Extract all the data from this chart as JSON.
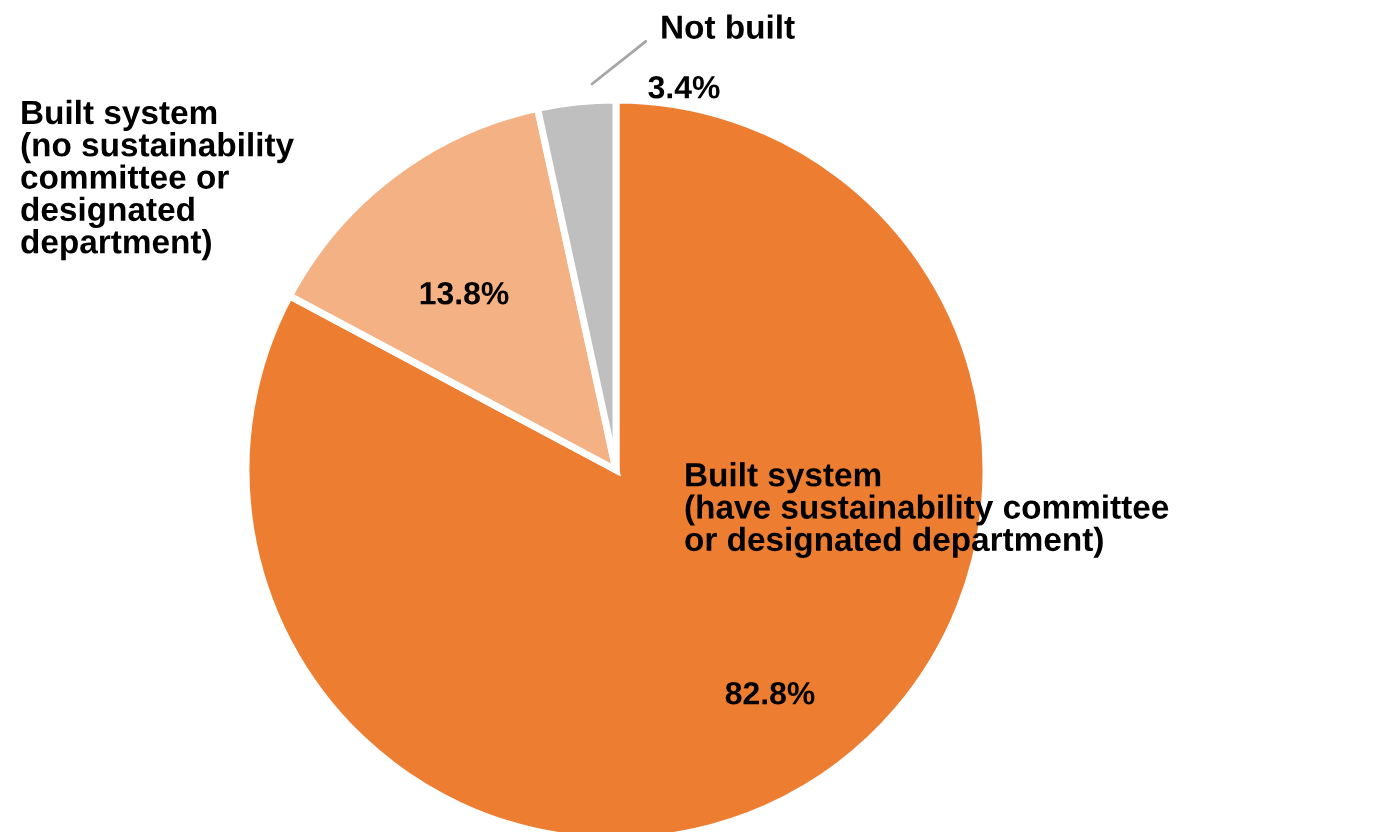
{
  "chart_data": {
    "type": "pie",
    "categories": [
      "Built system\n(have sustainability committee\nor designated department)",
      "Built system\n(no sustainability\ncommittee or\ndesignated\ndepartment)",
      "Not built"
    ],
    "values": [
      82.8,
      13.8,
      3.4
    ],
    "colors": [
      "#ed7d31",
      "#f4b183",
      "#bfbfbf"
    ],
    "value_labels": [
      "82.8%",
      "13.8%",
      "3.4%"
    ]
  }
}
